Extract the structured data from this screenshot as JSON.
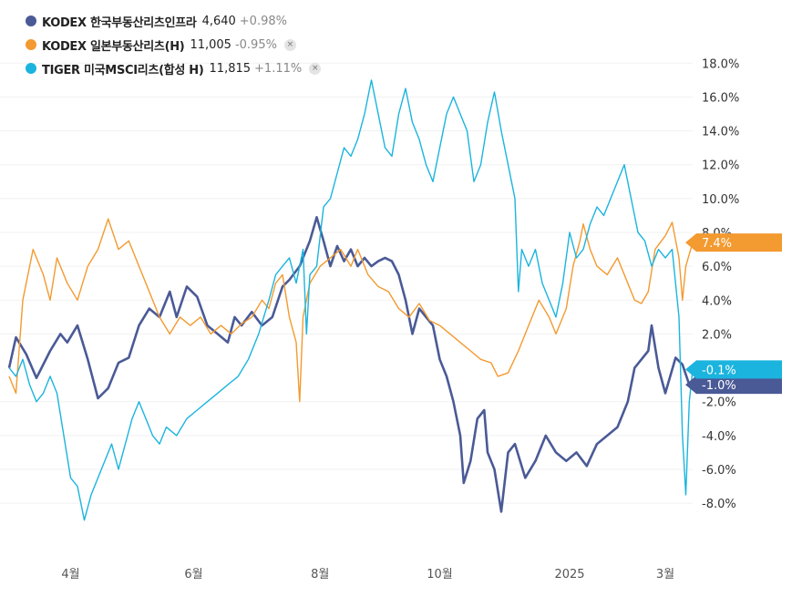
{
  "legend": [
    {
      "name": "KODEX 한국부동산리츠인프라",
      "price": "4,640",
      "change": "+0.98%",
      "color": "#4a5a96",
      "closable": false
    },
    {
      "name": "KODEX 일본부동산리츠(H)",
      "price": "11,005",
      "change": "-0.95%",
      "color": "#f39a30",
      "closable": true
    },
    {
      "name": "TIGER 미국MSCI리츠(합성 H)",
      "price": "11,815",
      "change": "+1.11%",
      "color": "#1bb4de",
      "closable": true
    }
  ],
  "close_icon": "×",
  "chart_data": {
    "type": "line",
    "title": "",
    "xlabel": "",
    "ylabel": "",
    "x_ticks": [
      {
        "label": "4월",
        "x": 0.09
      },
      {
        "label": "6월",
        "x": 0.27
      },
      {
        "label": "8월",
        "x": 0.455
      },
      {
        "label": "10월",
        "x": 0.63
      },
      {
        "label": "2025",
        "x": 0.82
      },
      {
        "label": "3월",
        "x": 0.96
      }
    ],
    "y_ticks": [
      "18.0%",
      "16.0%",
      "14.0%",
      "12.0%",
      "10.0%",
      "8.0%",
      "6.0%",
      "4.0%",
      "2.0%",
      "-2.0%",
      "-4.0%",
      "-6.0%",
      "-8.0%"
    ],
    "y_tick_values": [
      18,
      16,
      14,
      12,
      10,
      8,
      6,
      4,
      2,
      -2,
      -4,
      -6,
      -8
    ],
    "ylim": [
      -9.5,
      18.5
    ],
    "xlim": [
      0,
      1
    ],
    "grid": true,
    "series": [
      {
        "name": "KODEX 한국부동산리츠인프라",
        "color": "#4a5a96",
        "last_label": "-1.0%",
        "last_value": -1.0,
        "points": [
          [
            0.0,
            0.0
          ],
          [
            0.01,
            1.8
          ],
          [
            0.025,
            0.8
          ],
          [
            0.04,
            -0.6
          ],
          [
            0.06,
            1.0
          ],
          [
            0.075,
            2.0
          ],
          [
            0.085,
            1.5
          ],
          [
            0.1,
            2.5
          ],
          [
            0.115,
            0.5
          ],
          [
            0.13,
            -1.8
          ],
          [
            0.145,
            -1.2
          ],
          [
            0.16,
            0.3
          ],
          [
            0.175,
            0.6
          ],
          [
            0.19,
            2.5
          ],
          [
            0.205,
            3.5
          ],
          [
            0.22,
            3.0
          ],
          [
            0.235,
            4.5
          ],
          [
            0.245,
            3.0
          ],
          [
            0.26,
            4.8
          ],
          [
            0.275,
            4.2
          ],
          [
            0.29,
            2.5
          ],
          [
            0.305,
            2.0
          ],
          [
            0.32,
            1.5
          ],
          [
            0.33,
            3.0
          ],
          [
            0.34,
            2.5
          ],
          [
            0.355,
            3.3
          ],
          [
            0.37,
            2.5
          ],
          [
            0.385,
            3.0
          ],
          [
            0.4,
            4.8
          ],
          [
            0.41,
            5.2
          ],
          [
            0.425,
            6.0
          ],
          [
            0.44,
            7.5
          ],
          [
            0.45,
            8.9
          ],
          [
            0.46,
            7.5
          ],
          [
            0.47,
            6.0
          ],
          [
            0.48,
            7.2
          ],
          [
            0.49,
            6.3
          ],
          [
            0.5,
            7.0
          ],
          [
            0.51,
            6.0
          ],
          [
            0.52,
            6.5
          ],
          [
            0.53,
            6.0
          ],
          [
            0.54,
            6.3
          ],
          [
            0.55,
            6.5
          ],
          [
            0.56,
            6.3
          ],
          [
            0.57,
            5.5
          ],
          [
            0.58,
            4.0
          ],
          [
            0.59,
            2.0
          ],
          [
            0.6,
            3.5
          ],
          [
            0.61,
            3.0
          ],
          [
            0.62,
            2.5
          ],
          [
            0.63,
            0.5
          ],
          [
            0.64,
            -0.5
          ],
          [
            0.65,
            -2.0
          ],
          [
            0.66,
            -4.0
          ],
          [
            0.665,
            -6.8
          ],
          [
            0.675,
            -5.5
          ],
          [
            0.685,
            -3.0
          ],
          [
            0.695,
            -2.5
          ],
          [
            0.7,
            -5.0
          ],
          [
            0.71,
            -6.0
          ],
          [
            0.72,
            -8.5
          ],
          [
            0.73,
            -5.0
          ],
          [
            0.74,
            -4.5
          ],
          [
            0.755,
            -6.5
          ],
          [
            0.77,
            -5.5
          ],
          [
            0.785,
            -4.0
          ],
          [
            0.8,
            -5.0
          ],
          [
            0.815,
            -5.5
          ],
          [
            0.83,
            -5.0
          ],
          [
            0.845,
            -5.8
          ],
          [
            0.86,
            -4.5
          ],
          [
            0.875,
            -4.0
          ],
          [
            0.89,
            -3.5
          ],
          [
            0.905,
            -2.0
          ],
          [
            0.915,
            0.0
          ],
          [
            0.925,
            0.5
          ],
          [
            0.935,
            1.0
          ],
          [
            0.94,
            2.5
          ],
          [
            0.95,
            0.0
          ],
          [
            0.96,
            -1.5
          ],
          [
            0.975,
            0.6
          ],
          [
            0.985,
            0.2
          ],
          [
            0.995,
            -1.0
          ],
          [
            1.0,
            -1.0
          ]
        ]
      },
      {
        "name": "KODEX 일본부동산리츠(H)",
        "color": "#f39a30",
        "last_label": "7.4%",
        "last_value": 7.4,
        "points": [
          [
            0.0,
            -0.5
          ],
          [
            0.01,
            -1.5
          ],
          [
            0.02,
            4.0
          ],
          [
            0.035,
            7.0
          ],
          [
            0.05,
            5.5
          ],
          [
            0.06,
            4.0
          ],
          [
            0.07,
            6.5
          ],
          [
            0.085,
            5.0
          ],
          [
            0.1,
            4.0
          ],
          [
            0.115,
            6.0
          ],
          [
            0.13,
            7.0
          ],
          [
            0.145,
            8.8
          ],
          [
            0.16,
            7.0
          ],
          [
            0.175,
            7.5
          ],
          [
            0.19,
            6.0
          ],
          [
            0.205,
            4.5
          ],
          [
            0.22,
            3.0
          ],
          [
            0.235,
            2.0
          ],
          [
            0.25,
            3.0
          ],
          [
            0.265,
            2.5
          ],
          [
            0.28,
            3.0
          ],
          [
            0.295,
            2.0
          ],
          [
            0.31,
            2.5
          ],
          [
            0.325,
            2.0
          ],
          [
            0.34,
            2.6
          ],
          [
            0.355,
            3.0
          ],
          [
            0.37,
            4.0
          ],
          [
            0.38,
            3.5
          ],
          [
            0.39,
            5.0
          ],
          [
            0.4,
            5.5
          ],
          [
            0.41,
            3.0
          ],
          [
            0.42,
            1.5
          ],
          [
            0.425,
            -2.0
          ],
          [
            0.43,
            3.0
          ],
          [
            0.44,
            5.0
          ],
          [
            0.455,
            6.0
          ],
          [
            0.47,
            6.5
          ],
          [
            0.485,
            7.0
          ],
          [
            0.5,
            6.0
          ],
          [
            0.51,
            7.0
          ],
          [
            0.525,
            5.5
          ],
          [
            0.54,
            4.8
          ],
          [
            0.555,
            4.5
          ],
          [
            0.57,
            3.5
          ],
          [
            0.585,
            3.0
          ],
          [
            0.6,
            3.8
          ],
          [
            0.615,
            2.8
          ],
          [
            0.63,
            2.5
          ],
          [
            0.645,
            2.0
          ],
          [
            0.66,
            1.5
          ],
          [
            0.675,
            1.0
          ],
          [
            0.69,
            0.5
          ],
          [
            0.705,
            0.3
          ],
          [
            0.715,
            -0.5
          ],
          [
            0.73,
            -0.3
          ],
          [
            0.745,
            1.0
          ],
          [
            0.76,
            2.5
          ],
          [
            0.775,
            4.0
          ],
          [
            0.79,
            3.0
          ],
          [
            0.8,
            2.0
          ],
          [
            0.815,
            3.5
          ],
          [
            0.825,
            6.0
          ],
          [
            0.835,
            7.5
          ],
          [
            0.84,
            8.5
          ],
          [
            0.85,
            7.0
          ],
          [
            0.86,
            6.0
          ],
          [
            0.875,
            5.5
          ],
          [
            0.89,
            6.5
          ],
          [
            0.905,
            5.0
          ],
          [
            0.915,
            4.0
          ],
          [
            0.925,
            3.8
          ],
          [
            0.935,
            4.5
          ],
          [
            0.945,
            7.0
          ],
          [
            0.96,
            7.8
          ],
          [
            0.97,
            8.6
          ],
          [
            0.98,
            6.5
          ],
          [
            0.985,
            4.0
          ],
          [
            0.99,
            6.0
          ],
          [
            1.0,
            7.4
          ]
        ]
      },
      {
        "name": "TIGER 미국MSCI리츠(합성 H)",
        "color": "#1bb4de",
        "last_label": "-0.1%",
        "last_value": -0.1,
        "points": [
          [
            0.0,
            0.0
          ],
          [
            0.01,
            -0.5
          ],
          [
            0.02,
            0.5
          ],
          [
            0.03,
            -1.0
          ],
          [
            0.04,
            -2.0
          ],
          [
            0.05,
            -1.5
          ],
          [
            0.06,
            -0.5
          ],
          [
            0.07,
            -1.5
          ],
          [
            0.08,
            -4.0
          ],
          [
            0.09,
            -6.5
          ],
          [
            0.1,
            -7.0
          ],
          [
            0.11,
            -9.0
          ],
          [
            0.12,
            -7.5
          ],
          [
            0.13,
            -6.5
          ],
          [
            0.14,
            -5.5
          ],
          [
            0.15,
            -4.5
          ],
          [
            0.16,
            -6.0
          ],
          [
            0.17,
            -4.5
          ],
          [
            0.18,
            -3.0
          ],
          [
            0.19,
            -2.0
          ],
          [
            0.2,
            -3.0
          ],
          [
            0.21,
            -4.0
          ],
          [
            0.22,
            -4.5
          ],
          [
            0.23,
            -3.5
          ],
          [
            0.245,
            -4.0
          ],
          [
            0.26,
            -3.0
          ],
          [
            0.275,
            -2.5
          ],
          [
            0.29,
            -2.0
          ],
          [
            0.305,
            -1.5
          ],
          [
            0.32,
            -1.0
          ],
          [
            0.335,
            -0.5
          ],
          [
            0.35,
            0.5
          ],
          [
            0.365,
            2.0
          ],
          [
            0.38,
            4.0
          ],
          [
            0.39,
            5.5
          ],
          [
            0.4,
            6.0
          ],
          [
            0.41,
            6.5
          ],
          [
            0.42,
            5.0
          ],
          [
            0.43,
            7.0
          ],
          [
            0.435,
            2.0
          ],
          [
            0.44,
            5.5
          ],
          [
            0.45,
            6.0
          ],
          [
            0.46,
            9.5
          ],
          [
            0.47,
            10.0
          ],
          [
            0.48,
            11.5
          ],
          [
            0.49,
            13.0
          ],
          [
            0.5,
            12.5
          ],
          [
            0.51,
            13.5
          ],
          [
            0.52,
            15.0
          ],
          [
            0.53,
            17.0
          ],
          [
            0.54,
            15.0
          ],
          [
            0.55,
            13.0
          ],
          [
            0.56,
            12.5
          ],
          [
            0.57,
            15.0
          ],
          [
            0.58,
            16.5
          ],
          [
            0.59,
            14.5
          ],
          [
            0.6,
            13.5
          ],
          [
            0.61,
            12.0
          ],
          [
            0.62,
            11.0
          ],
          [
            0.63,
            13.0
          ],
          [
            0.64,
            15.0
          ],
          [
            0.65,
            16.0
          ],
          [
            0.66,
            15.0
          ],
          [
            0.67,
            14.0
          ],
          [
            0.68,
            11.0
          ],
          [
            0.69,
            12.0
          ],
          [
            0.7,
            14.5
          ],
          [
            0.71,
            16.3
          ],
          [
            0.72,
            14.0
          ],
          [
            0.73,
            12.0
          ],
          [
            0.74,
            10.0
          ],
          [
            0.745,
            4.5
          ],
          [
            0.75,
            7.0
          ],
          [
            0.76,
            6.0
          ],
          [
            0.77,
            7.0
          ],
          [
            0.78,
            5.0
          ],
          [
            0.79,
            4.0
          ],
          [
            0.8,
            3.0
          ],
          [
            0.81,
            5.0
          ],
          [
            0.82,
            8.0
          ],
          [
            0.83,
            6.5
          ],
          [
            0.84,
            7.0
          ],
          [
            0.85,
            8.5
          ],
          [
            0.86,
            9.5
          ],
          [
            0.87,
            9.0
          ],
          [
            0.88,
            10.0
          ],
          [
            0.89,
            11.0
          ],
          [
            0.9,
            12.0
          ],
          [
            0.91,
            10.0
          ],
          [
            0.92,
            8.0
          ],
          [
            0.93,
            7.5
          ],
          [
            0.94,
            6.0
          ],
          [
            0.95,
            7.0
          ],
          [
            0.96,
            6.5
          ],
          [
            0.97,
            7.0
          ],
          [
            0.98,
            3.0
          ],
          [
            0.985,
            -4.0
          ],
          [
            0.99,
            -7.5
          ],
          [
            0.995,
            -2.0
          ],
          [
            1.0,
            -0.1
          ]
        ]
      }
    ]
  }
}
